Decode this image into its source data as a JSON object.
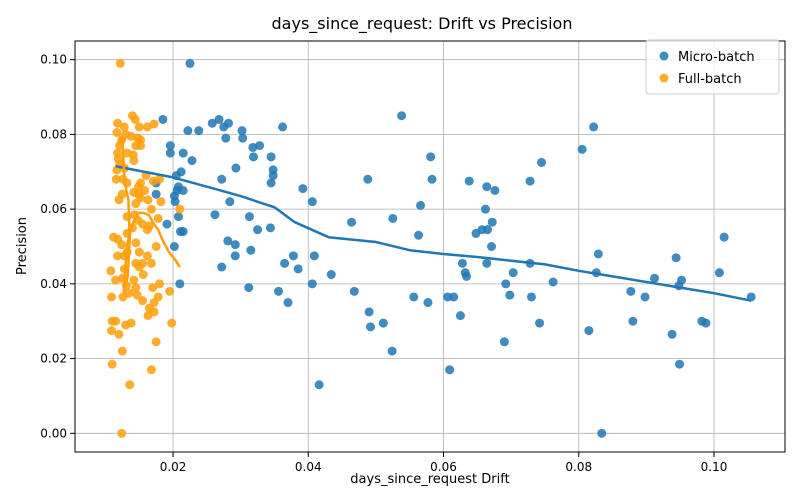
{
  "chart_data": {
    "type": "scatter",
    "title": "days_since_request: Drift vs Precision",
    "xlabel": "days_since_request Drift",
    "ylabel": "Precision",
    "xlim": [
      0.0055,
      0.1105
    ],
    "ylim": [
      -0.005,
      0.105
    ],
    "xticks": [
      0.02,
      0.04,
      0.06,
      0.08,
      0.1
    ],
    "xtick_labels": [
      "0.02",
      "0.04",
      "0.06",
      "0.08",
      "0.10"
    ],
    "yticks": [
      0.0,
      0.02,
      0.04,
      0.06,
      0.08,
      0.1
    ],
    "ytick_labels": [
      "0.00",
      "0.02",
      "0.04",
      "0.06",
      "0.08",
      "0.10"
    ],
    "grid": true,
    "legend_position": "top-right",
    "series": [
      {
        "name": "Micro-batch",
        "color": "#1f77b4",
        "points": [
          [
            0.0225,
            0.099
          ],
          [
            0.0185,
            0.084
          ],
          [
            0.0268,
            0.084
          ],
          [
            0.0258,
            0.083
          ],
          [
            0.0282,
            0.083
          ],
          [
            0.0275,
            0.082
          ],
          [
            0.0362,
            0.082
          ],
          [
            0.0222,
            0.081
          ],
          [
            0.0238,
            0.081
          ],
          [
            0.0302,
            0.081
          ],
          [
            0.0278,
            0.079
          ],
          [
            0.0303,
            0.079
          ],
          [
            0.0538,
            0.085
          ],
          [
            0.0822,
            0.082
          ],
          [
            0.0805,
            0.076
          ],
          [
            0.0196,
            0.077
          ],
          [
            0.0318,
            0.0765
          ],
          [
            0.0328,
            0.077
          ],
          [
            0.0215,
            0.075
          ],
          [
            0.0196,
            0.075
          ],
          [
            0.0319,
            0.074
          ],
          [
            0.0345,
            0.074
          ],
          [
            0.0581,
            0.074
          ],
          [
            0.0745,
            0.0725
          ],
          [
            0.0228,
            0.073
          ],
          [
            0.0293,
            0.071
          ],
          [
            0.0348,
            0.0705
          ],
          [
            0.0212,
            0.07
          ],
          [
            0.0205,
            0.069
          ],
          [
            0.0348,
            0.069
          ],
          [
            0.0272,
            0.068
          ],
          [
            0.0583,
            0.068
          ],
          [
            0.0488,
            0.068
          ],
          [
            0.0345,
            0.067
          ],
          [
            0.0638,
            0.0675
          ],
          [
            0.0728,
            0.0675
          ],
          [
            0.0175,
            0.067
          ],
          [
            0.0208,
            0.066
          ],
          [
            0.0392,
            0.0655
          ],
          [
            0.0664,
            0.066
          ],
          [
            0.0676,
            0.065
          ],
          [
            0.0206,
            0.065
          ],
          [
            0.0215,
            0.065
          ],
          [
            0.0175,
            0.064
          ],
          [
            0.0202,
            0.0635
          ],
          [
            0.0203,
            0.062
          ],
          [
            0.0284,
            0.062
          ],
          [
            0.0406,
            0.062
          ],
          [
            0.0566,
            0.061
          ],
          [
            0.0662,
            0.06
          ],
          [
            0.0262,
            0.0585
          ],
          [
            0.0208,
            0.058
          ],
          [
            0.0313,
            0.058
          ],
          [
            0.0525,
            0.0575
          ],
          [
            0.0464,
            0.0565
          ],
          [
            0.0672,
            0.0565
          ],
          [
            0.0191,
            0.056
          ],
          [
            0.0344,
            0.055
          ],
          [
            0.0657,
            0.0545
          ],
          [
            0.0665,
            0.0545
          ],
          [
            0.0325,
            0.0545
          ],
          [
            0.0211,
            0.054
          ],
          [
            0.0215,
            0.054
          ],
          [
            0.0648,
            0.0535
          ],
          [
            0.0563,
            0.053
          ],
          [
            0.1015,
            0.0525
          ],
          [
            0.0281,
            0.0515
          ],
          [
            0.0292,
            0.0505
          ],
          [
            0.0315,
            0.049
          ],
          [
            0.0671,
            0.05
          ],
          [
            0.0202,
            0.05
          ],
          [
            0.0829,
            0.048
          ],
          [
            0.0944,
            0.047
          ],
          [
            0.0292,
            0.0475
          ],
          [
            0.0378,
            0.0475
          ],
          [
            0.0409,
            0.0475
          ],
          [
            0.0365,
            0.0455
          ],
          [
            0.0628,
            0.0455
          ],
          [
            0.0664,
            0.0455
          ],
          [
            0.0728,
            0.0455
          ],
          [
            0.0272,
            0.0445
          ],
          [
            0.0385,
            0.044
          ],
          [
            0.0632,
            0.043
          ],
          [
            0.0703,
            0.043
          ],
          [
            0.0826,
            0.043
          ],
          [
            0.1008,
            0.043
          ],
          [
            0.0434,
            0.0425
          ],
          [
            0.0634,
            0.042
          ],
          [
            0.0912,
            0.0415
          ],
          [
            0.0952,
            0.041
          ],
          [
            0.0762,
            0.0405
          ],
          [
            0.021,
            0.04
          ],
          [
            0.0406,
            0.04
          ],
          [
            0.0692,
            0.04
          ],
          [
            0.0948,
            0.0395
          ],
          [
            0.0312,
            0.039
          ],
          [
            0.0356,
            0.038
          ],
          [
            0.0468,
            0.038
          ],
          [
            0.0877,
            0.038
          ],
          [
            0.0698,
            0.037
          ],
          [
            0.0556,
            0.0365
          ],
          [
            0.0606,
            0.0365
          ],
          [
            0.0615,
            0.0365
          ],
          [
            0.073,
            0.0365
          ],
          [
            0.0898,
            0.0365
          ],
          [
            0.1055,
            0.0365
          ],
          [
            0.037,
            0.035
          ],
          [
            0.0577,
            0.035
          ],
          [
            0.049,
            0.0325
          ],
          [
            0.0625,
            0.0315
          ],
          [
            0.0511,
            0.0295
          ],
          [
            0.0742,
            0.0295
          ],
          [
            0.088,
            0.03
          ],
          [
            0.0982,
            0.03
          ],
          [
            0.0988,
            0.0295
          ],
          [
            0.0492,
            0.0285
          ],
          [
            0.0815,
            0.0275
          ],
          [
            0.0938,
            0.0265
          ],
          [
            0.069,
            0.0245
          ],
          [
            0.0524,
            0.022
          ],
          [
            0.0949,
            0.0185
          ],
          [
            0.0609,
            0.017
          ],
          [
            0.0416,
            0.013
          ],
          [
            0.0834,
            0.0
          ]
        ]
      },
      {
        "name": "Full-batch",
        "color": "#ff9f0a",
        "points": [
          [
            0.0122,
            0.099
          ],
          [
            0.014,
            0.085
          ],
          [
            0.0144,
            0.084
          ],
          [
            0.0118,
            0.083
          ],
          [
            0.0172,
            0.0828
          ],
          [
            0.0128,
            0.082
          ],
          [
            0.015,
            0.082
          ],
          [
            0.0162,
            0.082
          ],
          [
            0.0117,
            0.0805
          ],
          [
            0.013,
            0.08
          ],
          [
            0.0148,
            0.079
          ],
          [
            0.0124,
            0.0785
          ],
          [
            0.0138,
            0.0795
          ],
          [
            0.0152,
            0.0785
          ],
          [
            0.0121,
            0.077
          ],
          [
            0.0145,
            0.077
          ],
          [
            0.0152,
            0.077
          ],
          [
            0.0118,
            0.075
          ],
          [
            0.0132,
            0.075
          ],
          [
            0.0141,
            0.0745
          ],
          [
            0.0119,
            0.0735
          ],
          [
            0.0142,
            0.073
          ],
          [
            0.0121,
            0.072
          ],
          [
            0.0128,
            0.071
          ],
          [
            0.0117,
            0.0705
          ],
          [
            0.016,
            0.069
          ],
          [
            0.0116,
            0.068
          ],
          [
            0.0126,
            0.068
          ],
          [
            0.018,
            0.068
          ],
          [
            0.0171,
            0.0675
          ],
          [
            0.0132,
            0.067
          ],
          [
            0.0152,
            0.067
          ],
          [
            0.0149,
            0.066
          ],
          [
            0.0158,
            0.065
          ],
          [
            0.0142,
            0.0645
          ],
          [
            0.0125,
            0.064
          ],
          [
            0.0149,
            0.064
          ],
          [
            0.0152,
            0.063
          ],
          [
            0.0163,
            0.0625
          ],
          [
            0.012,
            0.0625
          ],
          [
            0.0145,
            0.0615
          ],
          [
            0.0182,
            0.062
          ],
          [
            0.0168,
            0.06
          ],
          [
            0.021,
            0.06
          ],
          [
            0.0143,
            0.0585
          ],
          [
            0.0132,
            0.058
          ],
          [
            0.0178,
            0.0575
          ],
          [
            0.0148,
            0.057
          ],
          [
            0.0155,
            0.056
          ],
          [
            0.0165,
            0.0555
          ],
          [
            0.014,
            0.055
          ],
          [
            0.0162,
            0.0545
          ],
          [
            0.0132,
            0.0535
          ],
          [
            0.0118,
            0.052
          ],
          [
            0.0112,
            0.0525
          ],
          [
            0.0145,
            0.051
          ],
          [
            0.0124,
            0.0505
          ],
          [
            0.0175,
            0.05
          ],
          [
            0.0132,
            0.0485
          ],
          [
            0.015,
            0.0485
          ],
          [
            0.0162,
            0.0475
          ],
          [
            0.0118,
            0.0475
          ],
          [
            0.0128,
            0.0475
          ],
          [
            0.0145,
            0.0455
          ],
          [
            0.0155,
            0.0455
          ],
          [
            0.0168,
            0.0455
          ],
          [
            0.015,
            0.0445
          ],
          [
            0.0128,
            0.044
          ],
          [
            0.0108,
            0.0435
          ],
          [
            0.0156,
            0.0425
          ],
          [
            0.0125,
            0.0415
          ],
          [
            0.0115,
            0.041
          ],
          [
            0.0142,
            0.041
          ],
          [
            0.018,
            0.04
          ],
          [
            0.0131,
            0.0395
          ],
          [
            0.0145,
            0.039
          ],
          [
            0.017,
            0.039
          ],
          [
            0.0195,
            0.038
          ],
          [
            0.0135,
            0.0375
          ],
          [
            0.0147,
            0.037
          ],
          [
            0.0126,
            0.0365
          ],
          [
            0.0109,
            0.0365
          ],
          [
            0.0178,
            0.0365
          ],
          [
            0.0155,
            0.0355
          ],
          [
            0.0172,
            0.035
          ],
          [
            0.0165,
            0.0335
          ],
          [
            0.0172,
            0.0325
          ],
          [
            0.0163,
            0.0315
          ],
          [
            0.011,
            0.03
          ],
          [
            0.0115,
            0.03
          ],
          [
            0.0138,
            0.0295
          ],
          [
            0.0198,
            0.0295
          ],
          [
            0.013,
            0.029
          ],
          [
            0.0109,
            0.0275
          ],
          [
            0.012,
            0.0265
          ],
          [
            0.0175,
            0.0245
          ],
          [
            0.0125,
            0.022
          ],
          [
            0.011,
            0.0185
          ],
          [
            0.0168,
            0.017
          ],
          [
            0.0136,
            0.013
          ],
          [
            0.0124,
            0.0
          ]
        ]
      }
    ],
    "trend_lines": [
      {
        "series": "Micro-batch",
        "color": "#1f77b4",
        "points": [
          [
            0.0115,
            0.0715
          ],
          [
            0.02,
            0.0685
          ],
          [
            0.025,
            0.066
          ],
          [
            0.03,
            0.0635
          ],
          [
            0.035,
            0.0605
          ],
          [
            0.038,
            0.0565
          ],
          [
            0.043,
            0.0525
          ],
          [
            0.05,
            0.0512
          ],
          [
            0.055,
            0.049
          ],
          [
            0.06,
            0.048
          ],
          [
            0.065,
            0.0472
          ],
          [
            0.07,
            0.0462
          ],
          [
            0.075,
            0.0452
          ],
          [
            0.08,
            0.0435
          ],
          [
            0.085,
            0.042
          ],
          [
            0.09,
            0.0405
          ],
          [
            0.095,
            0.039
          ],
          [
            0.1,
            0.0375
          ],
          [
            0.1055,
            0.0355
          ]
        ]
      },
      {
        "series": "Full-batch",
        "color": "#ff9f0a",
        "points": [
          [
            0.0122,
            0.0785
          ],
          [
            0.0125,
            0.0795
          ],
          [
            0.0128,
            0.068
          ],
          [
            0.0131,
            0.065
          ],
          [
            0.0134,
            0.0625
          ],
          [
            0.0136,
            0.052
          ],
          [
            0.0133,
            0.042
          ],
          [
            0.0127,
            0.0375
          ],
          [
            0.0132,
            0.0505
          ],
          [
            0.014,
            0.056
          ],
          [
            0.0148,
            0.059
          ],
          [
            0.0156,
            0.059
          ],
          [
            0.0164,
            0.0585
          ],
          [
            0.0172,
            0.056
          ],
          [
            0.0178,
            0.0545
          ],
          [
            0.0185,
            0.0515
          ],
          [
            0.0194,
            0.0485
          ],
          [
            0.0203,
            0.0465
          ],
          [
            0.021,
            0.0445
          ]
        ]
      }
    ]
  }
}
